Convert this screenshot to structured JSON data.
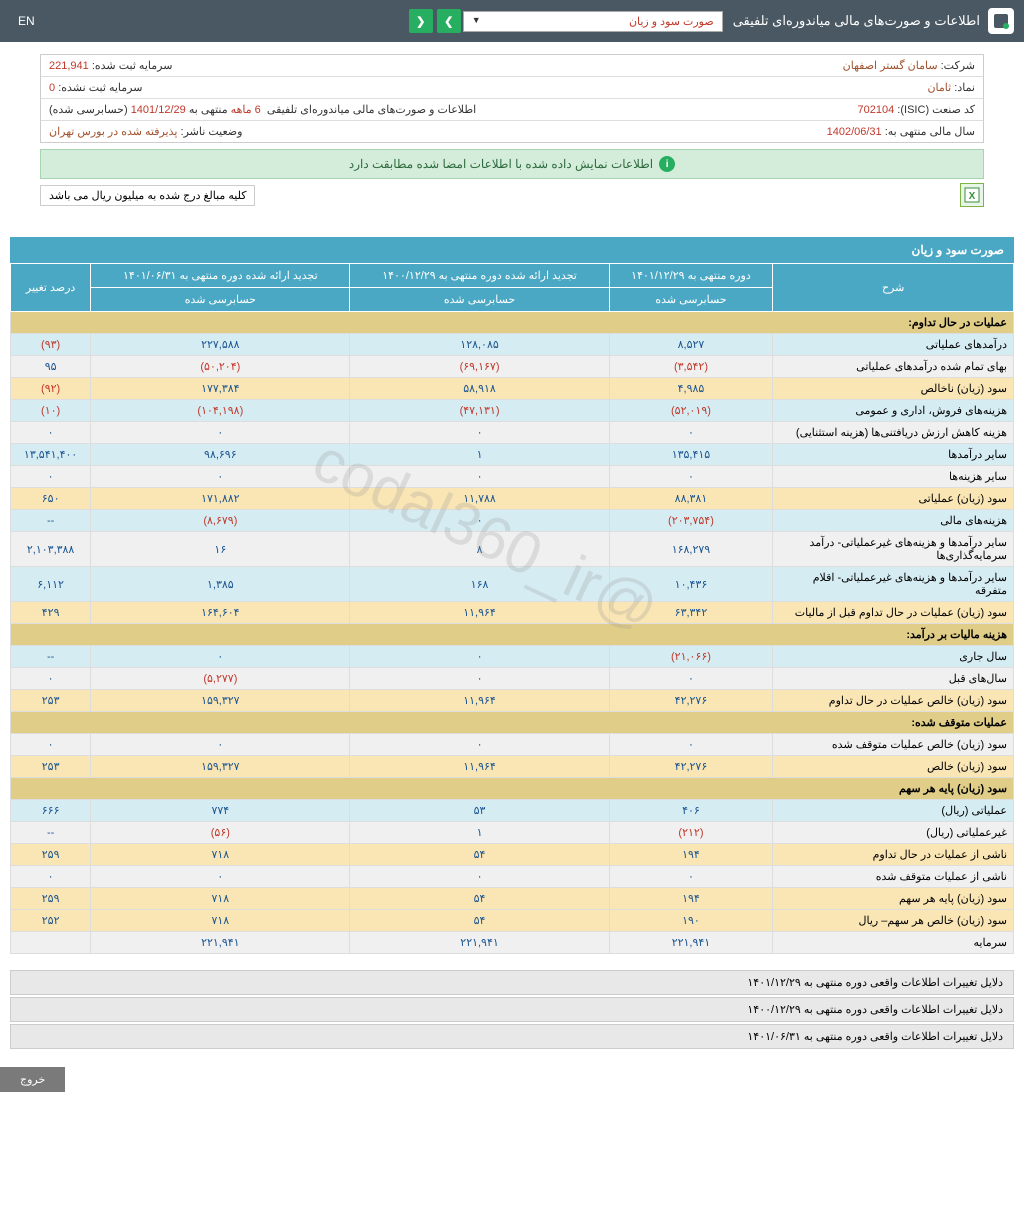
{
  "topbar": {
    "title": "اطلاعات و صورت‌های مالی میاندوره‌ای تلفیقی",
    "dropdown": "صورت سود و زیان",
    "lang": "EN"
  },
  "info": {
    "company_label": "شرکت:",
    "company_val": "سامان گستر اصفهان",
    "capital_reg_label": "سرمایه ثبت شده:",
    "capital_reg_val": "221,941",
    "symbol_label": "نماد:",
    "symbol_val": "ثامان",
    "capital_unreg_label": "سرمایه ثبت نشده:",
    "capital_unreg_val": "0",
    "isic_label": "کد صنعت (ISIC):",
    "isic_val": "702104",
    "period_label": "اطلاعات و صورت‌های مالی میاندوره‌ای تلفیقی",
    "period_val1": "6 ماهه",
    "period_val2": "منتهی به",
    "period_val3": "1401/12/29",
    "period_val4": "(حسابرسی شده)",
    "fiscal_label": "سال مالی منتهی به:",
    "fiscal_val": "1402/06/31",
    "status_label": "وضعیت ناشر:",
    "status_val": "پذیرفته شده در بورس تهران"
  },
  "banner": "اطلاعات نمایش داده شده با اطلاعات امضا شده مطابقت دارد",
  "note": "کلیه مبالغ درج شده به میلیون ریال می باشد",
  "section_title": "صورت سود و زیان",
  "headers": {
    "desc": "شرح",
    "c1": "دوره منتهی به ۱۴۰۱/۱۲/۲۹",
    "c1s": "حسابرسی شده",
    "c2": "تجدید ارائه شده دوره منتهی به ۱۴۰۰/۱۲/۲۹",
    "c2s": "حسابرسی شده",
    "c3": "تجدید ارائه شده دوره منتهی به ۱۴۰۱/۰۶/۳۱",
    "c3s": "حسابرسی شده",
    "c4": "درصد تغییر"
  },
  "rows": [
    {
      "type": "header",
      "desc": "عملیات در حال تداوم:"
    },
    {
      "type": "blue",
      "desc": "درآمدهای عملیاتی",
      "v": [
        "۸,۵۲۷",
        "۱۲۸,۰۸۵",
        "۲۲۷,۵۸۸",
        "(۹۳)"
      ],
      "neg": [
        0,
        0,
        0,
        1
      ]
    },
    {
      "type": "alt",
      "desc": "بهای تمام شده درآمدهای عملیاتی",
      "v": [
        "(۳,۵۴۲)",
        "(۶۹,۱۶۷)",
        "(۵۰,۲۰۴)",
        "۹۵"
      ],
      "neg": [
        1,
        1,
        1,
        0
      ]
    },
    {
      "type": "hl",
      "desc": "سود (زیان) ناخالص",
      "v": [
        "۴,۹۸۵",
        "۵۸,۹۱۸",
        "۱۷۷,۳۸۴",
        "(۹۲)"
      ],
      "neg": [
        0,
        0,
        0,
        1
      ]
    },
    {
      "type": "blue",
      "desc": "هزینه‌های فروش، اداری و عمومی",
      "v": [
        "(۵۲,۰۱۹)",
        "(۴۷,۱۳۱)",
        "(۱۰۴,۱۹۸)",
        "(۱۰)"
      ],
      "neg": [
        1,
        1,
        1,
        1
      ]
    },
    {
      "type": "alt",
      "desc": "هزینه کاهش ارزش دریافتنی‌ها (هزینه استثنایی)",
      "v": [
        "۰",
        "۰",
        "۰",
        "۰"
      ],
      "neg": [
        0,
        0,
        0,
        0
      ]
    },
    {
      "type": "blue",
      "desc": "سایر درآمدها",
      "v": [
        "۱۳۵,۴۱۵",
        "۱",
        "۹۸,۶۹۶",
        "۱۳,۵۴۱,۴۰۰"
      ],
      "neg": [
        0,
        0,
        0,
        0
      ]
    },
    {
      "type": "alt",
      "desc": "سایر هزینه‌ها",
      "v": [
        "۰",
        "۰",
        "۰",
        "۰"
      ],
      "neg": [
        0,
        0,
        0,
        0
      ]
    },
    {
      "type": "hl",
      "desc": "سود (زیان) عملیاتی",
      "v": [
        "۸۸,۳۸۱",
        "۱۱,۷۸۸",
        "۱۷۱,۸۸۲",
        "۶۵۰"
      ],
      "neg": [
        0,
        0,
        0,
        0
      ]
    },
    {
      "type": "blue",
      "desc": "هزینه‌های مالی",
      "v": [
        "(۲۰۳,۷۵۴)",
        "۰",
        "(۸,۶۷۹)",
        "--"
      ],
      "neg": [
        1,
        0,
        1,
        0
      ]
    },
    {
      "type": "alt",
      "desc": "سایر درآمدها و هزینه‌های غیرعملیاتی- درآمد سرمایه‌گذاری‌ها",
      "v": [
        "۱۶۸,۲۷۹",
        "۸",
        "۱۶",
        "۲,۱۰۳,۳۸۸"
      ],
      "neg": [
        0,
        0,
        0,
        0
      ]
    },
    {
      "type": "blue",
      "desc": "سایر درآمدها و هزینه‌های غیرعملیاتی- اقلام متفرقه",
      "v": [
        "۱۰,۴۳۶",
        "۱۶۸",
        "۱,۳۸۵",
        "۶,۱۱۲"
      ],
      "neg": [
        0,
        0,
        0,
        0
      ]
    },
    {
      "type": "hl",
      "desc": "سود (زیان) عملیات در حال تداوم قبل از مالیات",
      "v": [
        "۶۳,۳۴۲",
        "۱۱,۹۶۴",
        "۱۶۴,۶۰۴",
        "۴۲۹"
      ],
      "neg": [
        0,
        0,
        0,
        0
      ]
    },
    {
      "type": "header",
      "desc": "هزینه مالیات بر درآمد:"
    },
    {
      "type": "blue",
      "desc": "سال جاری",
      "v": [
        "(۲۱,۰۶۶)",
        "۰",
        "۰",
        "--"
      ],
      "neg": [
        1,
        0,
        0,
        0
      ]
    },
    {
      "type": "alt",
      "desc": "سال‌های قبل",
      "v": [
        "۰",
        "۰",
        "(۵,۲۷۷)",
        "۰"
      ],
      "neg": [
        0,
        0,
        1,
        0
      ]
    },
    {
      "type": "hl",
      "desc": "سود (زیان) خالص عملیات در حال تداوم",
      "v": [
        "۴۲,۲۷۶",
        "۱۱,۹۶۴",
        "۱۵۹,۳۲۷",
        "۲۵۳"
      ],
      "neg": [
        0,
        0,
        0,
        0
      ]
    },
    {
      "type": "header",
      "desc": "عملیات متوقف شده:"
    },
    {
      "type": "alt",
      "desc": "سود (زیان) خالص عملیات متوقف شده",
      "v": [
        "۰",
        "۰",
        "۰",
        "۰"
      ],
      "neg": [
        0,
        0,
        0,
        0
      ]
    },
    {
      "type": "hl",
      "desc": "سود (زیان) خالص",
      "v": [
        "۴۲,۲۷۶",
        "۱۱,۹۶۴",
        "۱۵۹,۳۲۷",
        "۲۵۳"
      ],
      "neg": [
        0,
        0,
        0,
        0
      ]
    },
    {
      "type": "header",
      "desc": "سود (زیان) پایه هر سهم"
    },
    {
      "type": "blue",
      "desc": "عملیاتی (ریال)",
      "v": [
        "۴۰۶",
        "۵۳",
        "۷۷۴",
        "۶۶۶"
      ],
      "neg": [
        0,
        0,
        0,
        0
      ]
    },
    {
      "type": "alt",
      "desc": "غیرعملیاتی (ریال)",
      "v": [
        "(۲۱۲)",
        "۱",
        "(۵۶)",
        "--"
      ],
      "neg": [
        1,
        0,
        1,
        0
      ]
    },
    {
      "type": "hl",
      "desc": "ناشی از عملیات در حال تداوم",
      "v": [
        "۱۹۴",
        "۵۴",
        "۷۱۸",
        "۲۵۹"
      ],
      "neg": [
        0,
        0,
        0,
        0
      ]
    },
    {
      "type": "alt",
      "desc": "ناشی از عملیات متوقف شده",
      "v": [
        "۰",
        "۰",
        "۰",
        "۰"
      ],
      "neg": [
        0,
        0,
        0,
        0
      ]
    },
    {
      "type": "hl",
      "desc": "سود (زیان) پایه هر سهم",
      "v": [
        "۱۹۴",
        "۵۴",
        "۷۱۸",
        "۲۵۹"
      ],
      "neg": [
        0,
        0,
        0,
        0
      ]
    },
    {
      "type": "hl",
      "desc": "سود (زیان) خالص هر سهم– ریال",
      "v": [
        "۱۹۰",
        "۵۴",
        "۷۱۸",
        "۲۵۲"
      ],
      "neg": [
        0,
        0,
        0,
        0
      ]
    },
    {
      "type": "alt",
      "desc": "سرمایه",
      "v": [
        "۲۲۱,۹۴۱",
        "۲۲۱,۹۴۱",
        "۲۲۱,۹۴۱",
        ""
      ],
      "neg": [
        0,
        0,
        0,
        0
      ]
    }
  ],
  "reasons": [
    "دلایل تغییرات اطلاعات واقعی دوره منتهی به ۱۴۰۱/۱۲/۲۹",
    "دلایل تغییرات اطلاعات واقعی دوره منتهی به ۱۴۰۰/۱۲/۲۹",
    "دلایل تغییرات اطلاعات واقعی دوره منتهی به ۱۴۰۱/۰۶/۳۱"
  ],
  "exit": "خروج",
  "watermark": "@codal360_ir"
}
